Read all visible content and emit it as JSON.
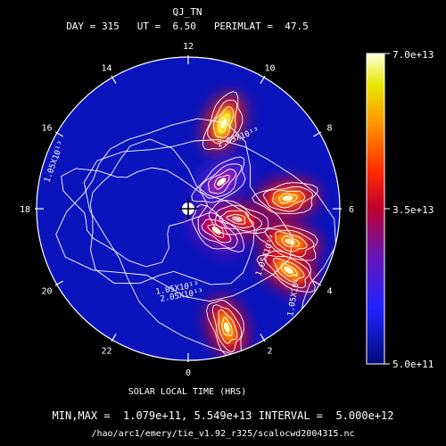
{
  "chart_data": {
    "type": "heatmap",
    "title": "QJ_TN",
    "subtitle": {
      "day_label": "DAY",
      "day": 315,
      "ut_label": "UT",
      "ut": "6.50",
      "perimlat_label": "PERIMLAT",
      "perimlat": "47.5"
    },
    "xlabel": "SOLAR LOCAL TIME (HRS)",
    "projection": "polar",
    "local_time_ticks": [
      "0",
      "2",
      "4",
      "6",
      "8",
      "10",
      "12",
      "14",
      "16",
      "18",
      "20",
      "22"
    ],
    "colorbar": {
      "min_label": "5.0e+11",
      "mid_label": "3.5e+13",
      "max_label": "7.0e+13",
      "min": 500000000000.0,
      "max": 70000000000000.0
    },
    "stats": {
      "label": "MIN,MAX =",
      "min": "1.079e+11",
      "max": "5.549e+13",
      "interval_label": "INTERVAL =",
      "interval": "5.000e+12"
    },
    "contour_labels": [
      "2.05X10¹³",
      "1.05X10¹³",
      "1.05X10¹³",
      "1.05X10¹³",
      "1.05X10¹³",
      "2.05X10¹³"
    ],
    "hotspots_local_time_colat": [
      {
        "lt": 10.5,
        "colat": 26,
        "value": 55000000000000.0
      },
      {
        "lt": 6.4,
        "colat": 28,
        "value": 50000000000000.0
      },
      {
        "lt": 4.8,
        "colat": 30,
        "value": 48000000000000.0
      },
      {
        "lt": 3.9,
        "colat": 33,
        "value": 45000000000000.0
      },
      {
        "lt": 1.2,
        "colat": 35,
        "value": 46000000000000.0
      },
      {
        "lt": 5.2,
        "colat": 14,
        "value": 35000000000000.0
      },
      {
        "lt": 3.5,
        "colat": 10,
        "value": 26000000000000.0
      },
      {
        "lt": 8.6,
        "colat": 12,
        "value": 18000000000000.0
      }
    ]
  },
  "footer": {
    "source": "/hao/arc1/emery/tie_v1.92_r325/scalocwd2004315.nc"
  }
}
